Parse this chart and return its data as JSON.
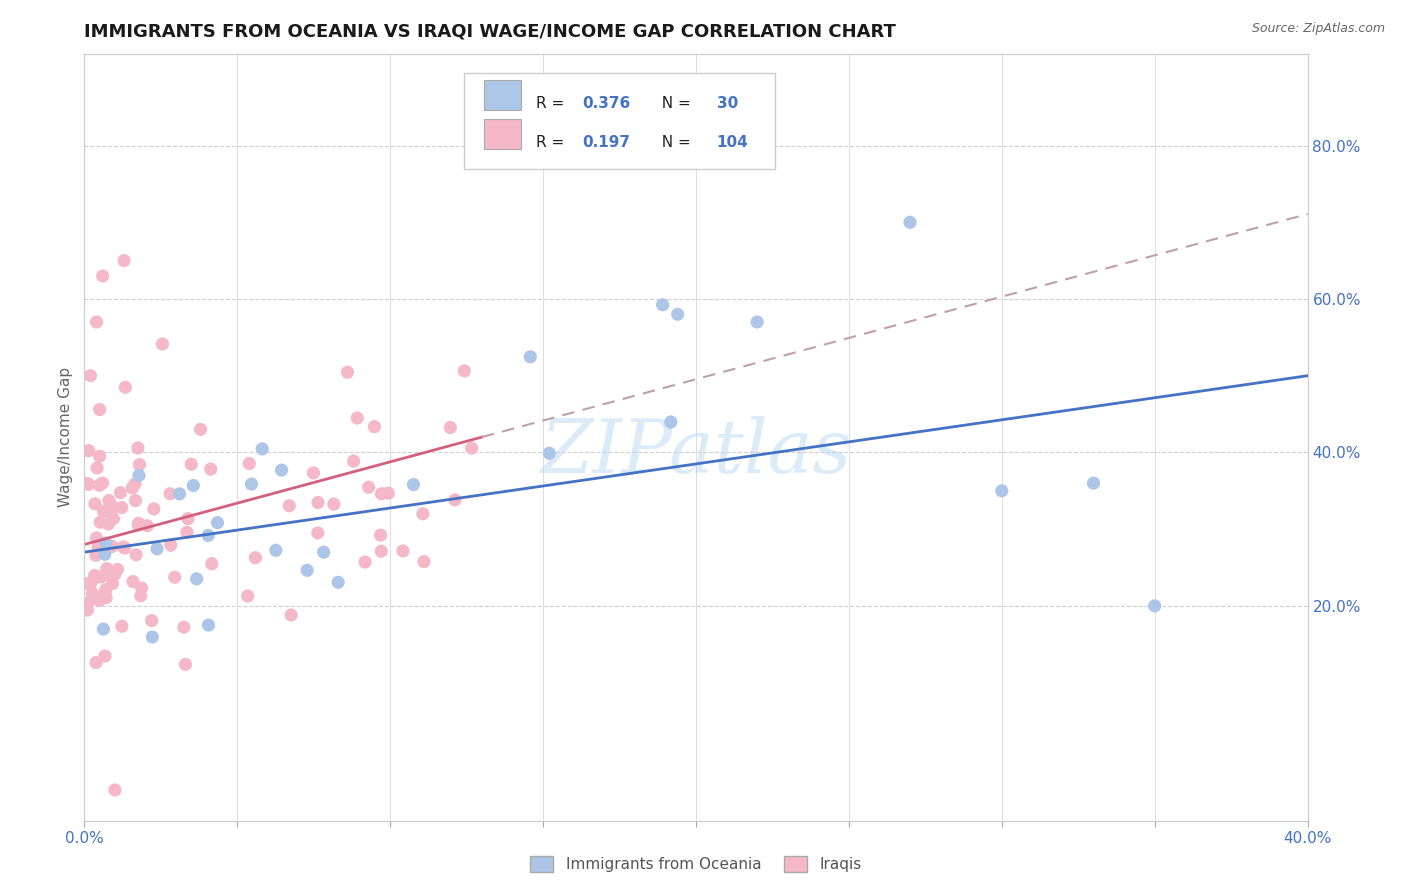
{
  "title": "IMMIGRANTS FROM OCEANIA VS IRAQI WAGE/INCOME GAP CORRELATION CHART",
  "source_text": "Source: ZipAtlas.com",
  "ylabel": "Wage/Income Gap",
  "watermark": "ZIPatlas",
  "xlim": [
    0.0,
    0.4
  ],
  "ylim": [
    -0.08,
    0.92
  ],
  "right_yticks": [
    0.2,
    0.4,
    0.6,
    0.8
  ],
  "right_yticklabels": [
    "20.0%",
    "40.0%",
    "60.0%",
    "80.0%"
  ],
  "series_blue": {
    "label": "Immigrants from Oceania",
    "R": "0.376",
    "N": "30",
    "color": "#adc6e8",
    "line_color": "#4472c4"
  },
  "series_pink": {
    "label": "Iraqis",
    "R": "0.197",
    "N": "104",
    "color": "#f4b8c8",
    "line_color": "#d46080"
  },
  "title_fontsize": 13,
  "background_color": "#ffffff",
  "grid_color": "#d0d0d0"
}
